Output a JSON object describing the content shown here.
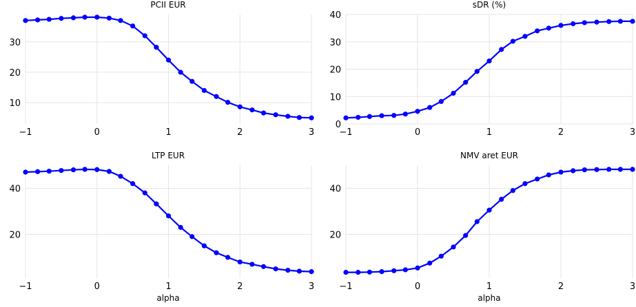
{
  "chart_data": [
    {
      "type": "line",
      "title": "PCII EUR",
      "xlabel": "",
      "ylabel": "",
      "xlim": [
        -1,
        3
      ],
      "ylim": [
        3,
        39
      ],
      "xticks": [
        -1,
        0,
        1,
        2,
        3
      ],
      "xtick_labels": [
        "−1",
        "0",
        "1",
        "2",
        "3"
      ],
      "yticks": [
        10,
        20,
        30
      ],
      "ytick_labels": [
        "10",
        "20",
        "30"
      ],
      "grid": true,
      "color": "#0000ff",
      "x": [
        -1.0,
        -0.83,
        -0.67,
        -0.5,
        -0.33,
        -0.17,
        0.0,
        0.17,
        0.33,
        0.5,
        0.67,
        0.83,
        1.0,
        1.17,
        1.33,
        1.5,
        1.67,
        1.83,
        2.0,
        2.17,
        2.33,
        2.5,
        2.67,
        2.83,
        3.0
      ],
      "y": [
        37.0,
        37.2,
        37.4,
        37.7,
        37.9,
        38.1,
        38.1,
        37.8,
        37.0,
        35.2,
        32.0,
        28.2,
        24.0,
        20.0,
        17.0,
        14.0,
        12.0,
        10.1,
        8.6,
        7.6,
        6.6,
        6.0,
        5.5,
        5.1,
        5.0
      ]
    },
    {
      "type": "line",
      "title": "sDR (%)",
      "xlabel": "",
      "ylabel": "",
      "xlim": [
        -1,
        3
      ],
      "ylim": [
        0,
        40
      ],
      "xticks": [
        -1,
        0,
        1,
        2,
        3
      ],
      "xtick_labels": [
        "−1",
        "0",
        "1",
        "2",
        "3"
      ],
      "yticks": [
        0,
        10,
        20,
        30,
        40
      ],
      "ytick_labels": [
        "0",
        "10",
        "20",
        "30",
        "40"
      ],
      "grid": true,
      "color": "#0000ff",
      "x": [
        -1.0,
        -0.83,
        -0.67,
        -0.5,
        -0.33,
        -0.17,
        0.0,
        0.17,
        0.33,
        0.5,
        0.67,
        0.83,
        1.0,
        1.17,
        1.33,
        1.5,
        1.67,
        1.83,
        2.0,
        2.17,
        2.33,
        2.5,
        2.67,
        2.83,
        3.0
      ],
      "y": [
        2.2,
        2.4,
        2.7,
        3.0,
        3.1,
        3.6,
        4.6,
        6.0,
        8.2,
        11.2,
        15.2,
        19.2,
        23.0,
        27.2,
        30.2,
        32.0,
        34.0,
        35.0,
        36.0,
        36.6,
        37.0,
        37.2,
        37.4,
        37.5,
        37.5
      ]
    },
    {
      "type": "line",
      "title": "LTP EUR",
      "xlabel": "alpha",
      "ylabel": "",
      "xlim": [
        -1,
        3
      ],
      "ylim": [
        1,
        50
      ],
      "xticks": [
        -1,
        0,
        1,
        2,
        3
      ],
      "xtick_labels": [
        "−1",
        "0",
        "1",
        "2",
        "3"
      ],
      "yticks": [
        20,
        40
      ],
      "ytick_labels": [
        "20",
        "40"
      ],
      "grid": true,
      "color": "#0000ff",
      "x": [
        -1.0,
        -0.83,
        -0.67,
        -0.5,
        -0.33,
        -0.17,
        0.0,
        0.17,
        0.33,
        0.5,
        0.67,
        0.83,
        1.0,
        1.17,
        1.33,
        1.5,
        1.67,
        1.83,
        2.0,
        2.17,
        2.33,
        2.5,
        2.67,
        2.83,
        3.0
      ],
      "y": [
        47.0,
        47.2,
        47.4,
        47.7,
        48.0,
        48.2,
        48.1,
        47.3,
        45.2,
        42.0,
        38.0,
        33.2,
        28.0,
        23.0,
        19.0,
        15.0,
        12.0,
        10.0,
        8.0,
        7.0,
        6.0,
        5.0,
        4.4,
        4.0,
        3.8
      ]
    },
    {
      "type": "line",
      "title": "NMV aret EUR",
      "xlabel": "alpha",
      "ylabel": "",
      "xlim": [
        -1,
        3
      ],
      "ylim": [
        1,
        50
      ],
      "xticks": [
        -1,
        0,
        1,
        2,
        3
      ],
      "xtick_labels": [
        "−1",
        "0",
        "1",
        "2",
        "3"
      ],
      "yticks": [
        20,
        40
      ],
      "ytick_labels": [
        "20",
        "40"
      ],
      "grid": true,
      "color": "#0000ff",
      "x": [
        -1.0,
        -0.83,
        -0.67,
        -0.5,
        -0.33,
        -0.17,
        0.0,
        0.17,
        0.33,
        0.5,
        0.67,
        0.83,
        1.0,
        1.17,
        1.33,
        1.5,
        1.67,
        1.83,
        2.0,
        2.17,
        2.33,
        2.5,
        2.67,
        2.83,
        3.0
      ],
      "y": [
        3.5,
        3.5,
        3.6,
        3.8,
        4.2,
        4.6,
        5.4,
        7.5,
        10.5,
        14.5,
        19.5,
        25.5,
        30.5,
        35.2,
        39.0,
        42.0,
        44.0,
        45.8,
        47.0,
        47.6,
        48.0,
        48.1,
        48.2,
        48.2,
        48.2
      ]
    }
  ]
}
